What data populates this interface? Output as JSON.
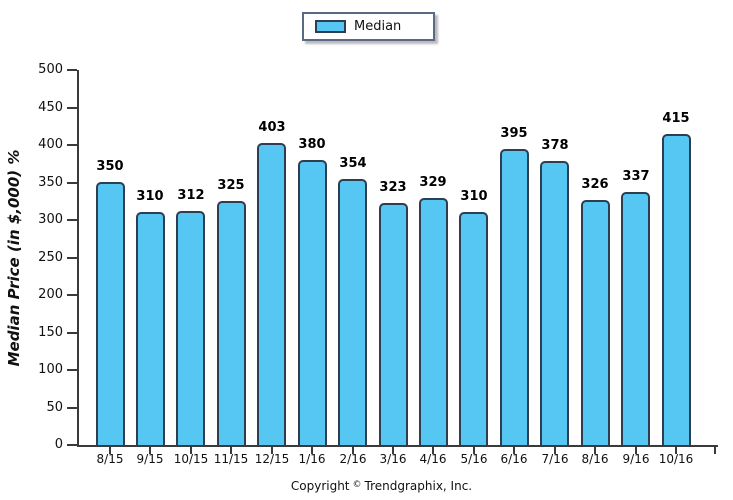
{
  "legend": {
    "label": "Median",
    "swatch_color": "#55c7f2",
    "swatch_border_color": "#2c3e50",
    "box_border_color": "#5a6a82"
  },
  "footer": {
    "copyright_prefix": "Copyright",
    "copyright_symbol": "©",
    "copyright_suffix": "Trendgraphix, Inc."
  },
  "chart_data": {
    "type": "bar",
    "title": "",
    "xlabel": "",
    "ylabel": "Median Price (in $,000) %",
    "categories": [
      "8/15",
      "9/15",
      "10/15",
      "11/15",
      "12/15",
      "1/16",
      "2/16",
      "3/16",
      "4/16",
      "5/16",
      "6/16",
      "7/16",
      "8/16",
      "9/16",
      "10/16"
    ],
    "values": [
      350,
      310,
      312,
      325,
      403,
      380,
      354,
      323,
      329,
      310,
      395,
      378,
      326,
      337,
      415
    ],
    "series_name": "Median",
    "ylim": [
      0,
      500
    ],
    "ytick_step": 50,
    "grid": false,
    "legend_position": "top-center",
    "value_labels_shown": true,
    "bar_fill_color": "#55c7f2",
    "bar_border_color": "#2c3e50",
    "axis_color": "#3a3a3a",
    "text_color": "#111111"
  }
}
